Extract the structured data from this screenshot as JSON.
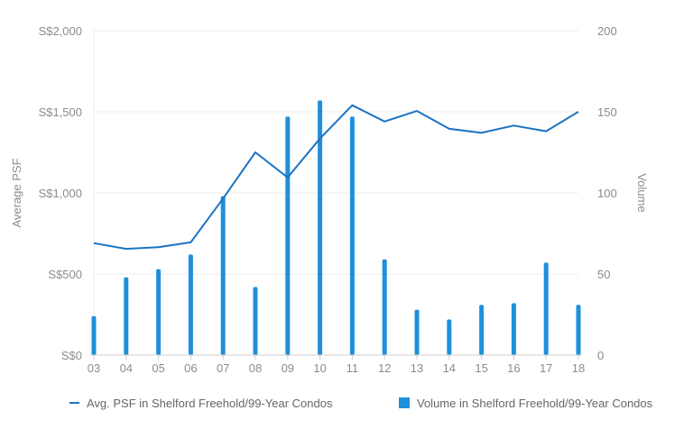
{
  "chart_data": {
    "type": "bar+line",
    "categories": [
      "03",
      "04",
      "05",
      "06",
      "07",
      "08",
      "09",
      "10",
      "11",
      "12",
      "13",
      "14",
      "15",
      "16",
      "17",
      "18"
    ],
    "series": [
      {
        "name": "Avg. PSF in Shelford Freehold/99-Year Condos",
        "type": "line",
        "axis": "left",
        "values": [
          690,
          655,
          665,
          695,
          965,
          1250,
          1095,
          1335,
          1540,
          1440,
          1505,
          1395,
          1370,
          1415,
          1380,
          1500
        ]
      },
      {
        "name": "Volume in Shelford Freehold/99-Year Condos",
        "type": "bar",
        "axis": "right",
        "values": [
          24,
          48,
          53,
          62,
          98,
          42,
          147,
          157,
          147,
          59,
          28,
          22,
          31,
          32,
          57,
          31
        ]
      }
    ],
    "ylabel": "Average PSF",
    "y2label": "Volume",
    "ylim": [
      0,
      2000
    ],
    "y2lim": [
      0,
      200
    ],
    "y_ticks": [
      "S$0",
      "S$500",
      "S$1,000",
      "S$1,500",
      "S$2,000"
    ],
    "y2_ticks": [
      "0",
      "50",
      "100",
      "150",
      "200"
    ],
    "grid": true,
    "legend_position": "bottom",
    "colors": {
      "line": "#1a73c4",
      "bar": "#1e90dc",
      "grid": "#eeeeee",
      "text": "#8c8c8c"
    }
  }
}
